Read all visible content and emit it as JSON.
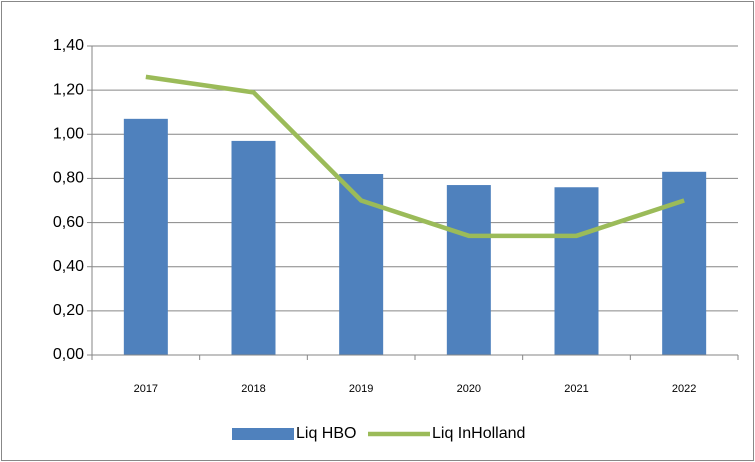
{
  "chart_data": {
    "type": "bar",
    "categories": [
      "2017",
      "2018",
      "2019",
      "2020",
      "2021",
      "2022"
    ],
    "series": [
      {
        "name": "Liq HBO",
        "type": "bar",
        "color": "#4f81bd",
        "values": [
          1.07,
          0.97,
          0.82,
          0.77,
          0.76,
          0.83
        ]
      },
      {
        "name": "Liq InHolland",
        "type": "line",
        "color": "#9bbb59",
        "values": [
          1.26,
          1.19,
          0.7,
          0.54,
          0.54,
          0.7
        ]
      }
    ],
    "ylim": [
      0,
      1.4
    ],
    "yticks": [
      {
        "value": 0,
        "label": "0,00"
      },
      {
        "value": 0.2,
        "label": "0,20"
      },
      {
        "value": 0.4,
        "label": "0,40"
      },
      {
        "value": 0.6,
        "label": "0,60"
      },
      {
        "value": 0.8,
        "label": "0,80"
      },
      {
        "value": 1.0,
        "label": "1,00"
      },
      {
        "value": 1.2,
        "label": "1,20"
      },
      {
        "value": 1.4,
        "label": "1,40"
      }
    ],
    "grid": true,
    "legend": "bottom"
  }
}
